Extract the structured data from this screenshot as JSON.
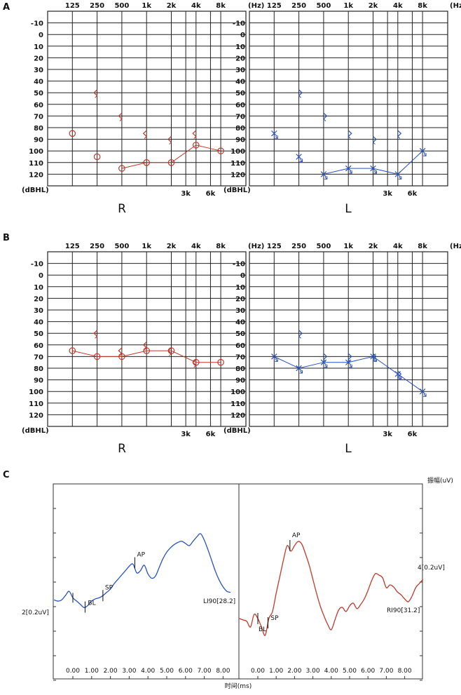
{
  "panel_labels": [
    "A",
    "B",
    "C"
  ],
  "audiogram_axis": {
    "freq_labels": [
      "125",
      "250",
      "500",
      "1k",
      "2k",
      "4k",
      "8k"
    ],
    "freq_unit": "(Hz)",
    "extra_freq_labels": [
      "3k",
      "6k"
    ],
    "level_labels": [
      "-10",
      "0",
      "10",
      "20",
      "30",
      "40",
      "50",
      "60",
      "70",
      "80",
      "90",
      "100",
      "110",
      "120"
    ],
    "level_unit": "(dBHL)"
  },
  "ear_labels": {
    "right": "R",
    "left": "L"
  },
  "colors": {
    "right": "#c0392b",
    "left": "#2a52be",
    "ecog_left": "#2a52be",
    "ecog_right": "#c0392b",
    "grid": "#222222"
  },
  "chart_data": [
    {
      "type": "scatter",
      "panel": "A",
      "ear": "R",
      "x_scale": "log-frequency",
      "ylim": [
        -10,
        130
      ],
      "air": {
        "symbol": "circle",
        "points": [
          [
            125,
            85
          ],
          [
            250,
            105
          ],
          [
            500,
            115
          ],
          [
            1000,
            110
          ],
          [
            2000,
            110
          ],
          [
            4000,
            95
          ],
          [
            8000,
            100
          ]
        ]
      },
      "bone": {
        "symbol": "<",
        "points": [
          [
            250,
            50
          ],
          [
            500,
            70
          ],
          [
            1000,
            85
          ],
          [
            2000,
            90
          ],
          [
            4000,
            85
          ]
        ]
      }
    },
    {
      "type": "scatter",
      "panel": "A",
      "ear": "L",
      "x_scale": "log-frequency",
      "ylim": [
        -10,
        130
      ],
      "air": {
        "symbol": "x",
        "points": [
          [
            125,
            85
          ],
          [
            250,
            105
          ],
          [
            500,
            120
          ],
          [
            1000,
            115
          ],
          [
            2000,
            115
          ],
          [
            4000,
            120
          ],
          [
            8000,
            100
          ]
        ]
      },
      "bone": {
        "symbol": ">",
        "points": [
          [
            250,
            50
          ],
          [
            500,
            70
          ],
          [
            1000,
            85
          ],
          [
            2000,
            90
          ],
          [
            4000,
            85
          ]
        ]
      }
    },
    {
      "type": "line",
      "panel": "B",
      "ear": "R",
      "x_scale": "log-frequency",
      "ylim": [
        -10,
        130
      ],
      "air": {
        "symbol": "circle",
        "points": [
          [
            125,
            65
          ],
          [
            250,
            70
          ],
          [
            500,
            70
          ],
          [
            1000,
            65
          ],
          [
            2000,
            65
          ],
          [
            4000,
            75
          ],
          [
            8000,
            75
          ]
        ]
      },
      "bone": {
        "symbol": "<",
        "points": [
          [
            250,
            50
          ],
          [
            500,
            65
          ],
          [
            1000,
            60
          ],
          [
            2000,
            65
          ],
          [
            4000,
            75
          ]
        ]
      }
    },
    {
      "type": "line",
      "panel": "B",
      "ear": "L",
      "x_scale": "log-frequency",
      "ylim": [
        -10,
        130
      ],
      "air": {
        "symbol": "x",
        "points": [
          [
            125,
            70
          ],
          [
            250,
            80
          ],
          [
            500,
            75
          ],
          [
            1000,
            75
          ],
          [
            2000,
            70
          ],
          [
            4000,
            85
          ],
          [
            8000,
            100
          ]
        ]
      },
      "bone": {
        "symbol": ">",
        "points": [
          [
            250,
            50
          ],
          [
            500,
            70
          ],
          [
            1000,
            70
          ],
          [
            2000,
            70
          ],
          [
            4000,
            85
          ]
        ]
      }
    },
    {
      "type": "line",
      "panel": "C",
      "ylabel": "振幅(uV)",
      "xlabel": "时间(ms)",
      "xticks": [
        "0.00",
        "1.00",
        "2.00",
        "3.00",
        "4.00",
        "5.00",
        "6.00",
        "7.00",
        "8.00"
      ],
      "series": [
        {
          "label": "LI90[28.2]",
          "scale_label": "2[0.2uV]",
          "markers": [
            "BL",
            "SP",
            "AP"
          ],
          "x": [
            -1.0,
            -0.8,
            -0.6,
            -0.4,
            -0.2,
            0.0,
            0.2,
            0.4,
            0.6,
            0.8,
            1.0,
            1.2,
            1.4,
            1.6,
            1.8,
            2.0,
            2.2,
            2.4,
            2.6,
            2.8,
            3.0,
            3.2,
            3.4,
            3.6,
            3.8,
            4.0,
            4.2,
            4.4,
            4.6,
            4.8,
            5.0,
            5.2,
            5.4,
            5.6,
            5.8,
            6.0,
            6.2,
            6.4,
            6.6,
            6.8,
            7.0,
            7.2,
            7.4,
            7.6,
            7.8,
            8.0,
            8.2,
            8.4
          ],
          "y": [
            0.5,
            0.45,
            0.5,
            0.7,
            0.9,
            0.6,
            0.45,
            0.3,
            0.15,
            0.25,
            0.45,
            0.55,
            0.6,
            0.7,
            0.85,
            1.0,
            1.25,
            1.45,
            1.65,
            1.85,
            2.05,
            2.15,
            1.75,
            1.85,
            2.1,
            1.7,
            1.5,
            1.6,
            2.0,
            2.4,
            2.7,
            2.9,
            3.05,
            3.15,
            3.2,
            3.1,
            3.0,
            3.2,
            3.4,
            3.55,
            3.25,
            2.8,
            2.3,
            1.8,
            1.4,
            1.1,
            0.9,
            0.85
          ]
        },
        {
          "label": "RI90[31.2]",
          "scale_label": "4[0.2uV]",
          "markers": [
            "BL",
            "SP",
            "AP"
          ],
          "x": [
            -1.0,
            -0.8,
            -0.6,
            -0.4,
            -0.2,
            0.0,
            0.2,
            0.4,
            0.6,
            0.8,
            1.0,
            1.2,
            1.4,
            1.6,
            1.8,
            2.0,
            2.2,
            2.4,
            2.6,
            2.8,
            3.0,
            3.2,
            3.4,
            3.6,
            3.8,
            4.0,
            4.2,
            4.4,
            4.6,
            4.8,
            5.0,
            5.2,
            5.4,
            5.6,
            5.8,
            6.0,
            6.2,
            6.4,
            6.6,
            6.8,
            7.0,
            7.2,
            7.4,
            7.6,
            7.8,
            8.0,
            8.2,
            8.4,
            8.6,
            8.8,
            9.0
          ],
          "y": [
            -1.0,
            -1.1,
            -1.2,
            -1.6,
            -0.7,
            -1.0,
            -1.6,
            -2.2,
            -1.0,
            -0.5,
            0.8,
            2.0,
            3.2,
            4.2,
            3.8,
            4.2,
            4.5,
            4.3,
            3.6,
            2.8,
            1.8,
            0.8,
            -0.1,
            -0.8,
            -1.4,
            -1.8,
            -1.1,
            -0.4,
            -0.2,
            -0.5,
            -0.1,
            0.1,
            -0.3,
            0.0,
            0.4,
            1.0,
            1.7,
            2.2,
            2.1,
            1.9,
            1.2,
            1.4,
            1.25,
            0.9,
            0.7,
            0.4,
            0.2,
            0.6,
            1.2,
            1.5,
            1.8
          ]
        }
      ]
    }
  ]
}
